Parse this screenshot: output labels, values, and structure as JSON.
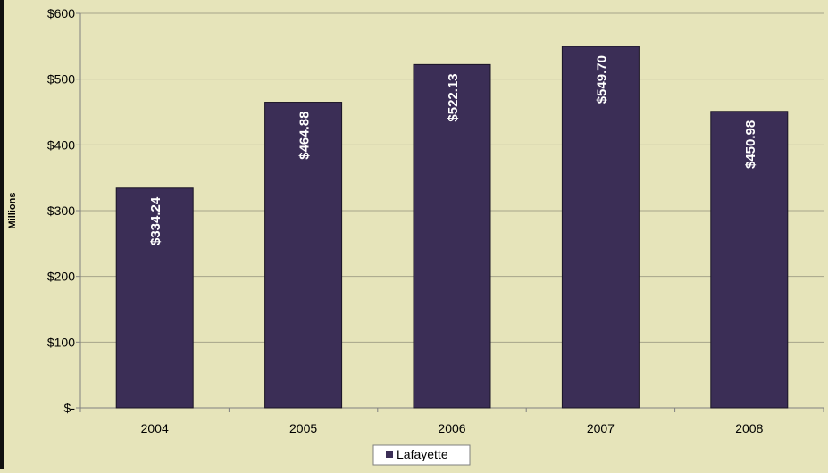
{
  "chart_data": {
    "type": "bar",
    "categories": [
      "2004",
      "2005",
      "2006",
      "2007",
      "2008"
    ],
    "series": [
      {
        "name": "Lafayette",
        "values": [
          334.24,
          464.88,
          522.13,
          549.7,
          450.98
        ]
      }
    ],
    "data_labels": [
      "$334.24",
      "$464.88",
      "$522.13",
      "$549.70",
      "$450.98"
    ],
    "yticks": [
      0,
      100,
      200,
      300,
      400,
      500,
      600
    ],
    "ytick_labels": [
      "$-",
      "$100",
      "$200",
      "$300",
      "$400",
      "$500",
      "$600"
    ],
    "ylabel": "Millions",
    "xlabel": "",
    "title": "",
    "ylim": [
      0,
      600
    ],
    "grid": true,
    "legend_position": "bottom-center",
    "colors": {
      "bar": "#3b2e56",
      "plot_background": "#e6e4ba",
      "gridline": "#a6a48a",
      "axis": "#808080",
      "data_label": "#ffffff"
    }
  }
}
